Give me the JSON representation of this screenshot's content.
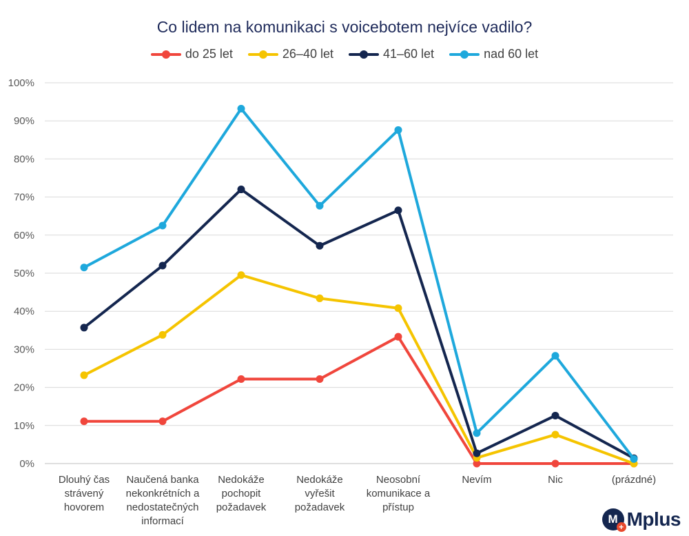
{
  "chart_data": {
    "type": "line",
    "title": "Co lidem na komunikaci s voicebotem nejvíce vadilo?",
    "categories": [
      [
        "Dlouhý čas",
        "strávený",
        "hovorem"
      ],
      [
        "Naučená banka",
        "nekonkrétních a",
        "nedostatečných",
        "informací"
      ],
      [
        "Nedokáže",
        "pochopit",
        "požadavek"
      ],
      [
        "Nedokáže",
        "vyřešit",
        "požadavek"
      ],
      [
        "Neosobní",
        "komunikace a",
        "přístup"
      ],
      [
        "Nevím"
      ],
      [
        "Nic"
      ],
      [
        "(prázdné)"
      ]
    ],
    "y_ticks": [
      "0%",
      "10%",
      "20%",
      "30%",
      "40%",
      "50%",
      "60%",
      "70%",
      "80%",
      "90%",
      "100%"
    ],
    "ylim": [
      0,
      1
    ],
    "grid": true,
    "legend_position": "top",
    "series": [
      {
        "name": "do 25 let",
        "color": "#f0463c",
        "values": [
          0.111,
          0.111,
          0.222,
          0.222,
          0.333,
          0.0,
          0.0,
          0.0
        ]
      },
      {
        "name": "26–40 let",
        "color": "#f5c400",
        "values": [
          0.232,
          0.338,
          0.495,
          0.434,
          0.408,
          0.015,
          0.076,
          0.0
        ]
      },
      {
        "name": "41–60 let",
        "color": "#14264f",
        "values": [
          0.357,
          0.52,
          0.72,
          0.572,
          0.665,
          0.027,
          0.126,
          0.014
        ]
      },
      {
        "name": "nad 60 let",
        "color": "#1ea8dc",
        "values": [
          0.515,
          0.625,
          0.932,
          0.677,
          0.876,
          0.08,
          0.283,
          0.012
        ]
      }
    ]
  },
  "logo": {
    "mark": "M",
    "plus": "+",
    "text": "Mplus"
  }
}
